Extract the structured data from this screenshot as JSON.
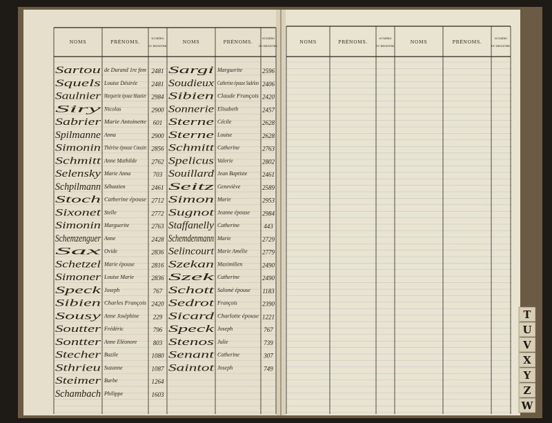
{
  "headers": {
    "nom": "NOMS",
    "prenoms": "PRÉNOMS.",
    "numero_top": "NUMÉRO",
    "numero_bottom": "DU REGISTRE."
  },
  "left_page": {
    "columns": [
      {
        "rows": [
          {
            "nom": "Sartou",
            "prenoms": "de Durand 1re fem",
            "numero": "2481"
          },
          {
            "nom": "Squels",
            "prenoms": "Louise Désirée",
            "numero": "2481"
          },
          {
            "nom": "Saulnier",
            "prenoms": "Marguerite épouse Maunier",
            "numero": "2984"
          },
          {
            "nom": "Siry",
            "prenoms": "Nicolas",
            "numero": "2900"
          },
          {
            "nom": "Sabrier",
            "prenoms": "Marie Antoinette",
            "numero": "601"
          },
          {
            "nom": "Spilmanne",
            "prenoms": "Anna",
            "numero": "2900"
          },
          {
            "nom": "Simonin",
            "prenoms": "Thérèse épouse Cousin",
            "numero": "2856"
          },
          {
            "nom": "Schmitt",
            "prenoms": "Anne Mathilde",
            "numero": "2762"
          },
          {
            "nom": "Selensky",
            "prenoms": "Marie Anna",
            "numero": "703"
          },
          {
            "nom": "Schpilmann",
            "prenoms": "Sébastien",
            "numero": "2461"
          },
          {
            "nom": "Stoch",
            "prenoms": "Catherine épouse",
            "numero": "2712"
          },
          {
            "nom": "Sixonet",
            "prenoms": "Stelle",
            "numero": "2772"
          },
          {
            "nom": "Simonin",
            "prenoms": "Marguerite",
            "numero": "2763"
          },
          {
            "nom": "Schemzenguer",
            "prenoms": "Anne",
            "numero": "2428"
          },
          {
            "nom": "Sax",
            "prenoms": "Ovide",
            "numero": "2836"
          },
          {
            "nom": "Schetzel",
            "prenoms": "Marie épouse",
            "numero": "2816"
          },
          {
            "nom": "Simoner",
            "prenoms": "Louise Marie",
            "numero": "2836"
          },
          {
            "nom": "Speck",
            "prenoms": "Joseph",
            "numero": "767"
          },
          {
            "nom": "Sibien",
            "prenoms": "Charles François",
            "numero": "2420"
          },
          {
            "nom": "Sousy",
            "prenoms": "Anne Joséphine",
            "numero": "229"
          },
          {
            "nom": "Soutter",
            "prenoms": "Frédéric",
            "numero": "796"
          },
          {
            "nom": "Sontter",
            "prenoms": "Anne Eléonore",
            "numero": "803"
          },
          {
            "nom": "Stecher",
            "prenoms": "Bazile",
            "numero": "1080"
          },
          {
            "nom": "Sthrieu",
            "prenoms": "Suzanne",
            "numero": "1087"
          },
          {
            "nom": "Steimer",
            "prenoms": "Barbe",
            "numero": "1264"
          },
          {
            "nom": "Schambach",
            "prenoms": "Philippe",
            "numero": "1603"
          }
        ]
      },
      {
        "rows": [
          {
            "nom": "Sargi",
            "prenoms": "Marguerite",
            "numero": "2596"
          },
          {
            "nom": "Soudieux",
            "prenoms": "Catherine épouse Sudelon",
            "numero": "2406"
          },
          {
            "nom": "Sibien",
            "prenoms": "Claude François",
            "numero": "2420"
          },
          {
            "nom": "Sonnerie",
            "prenoms": "Elisabeth",
            "numero": "2457"
          },
          {
            "nom": "Sterne",
            "prenoms": "Cécile",
            "numero": "2628"
          },
          {
            "nom": "Sterne",
            "prenoms": "Louise",
            "numero": "2628"
          },
          {
            "nom": "Schmitt",
            "prenoms": "Catherine",
            "numero": "2763"
          },
          {
            "nom": "Spelicus",
            "prenoms": "Valerie",
            "numero": "2802"
          },
          {
            "nom": "Souillard",
            "prenoms": "Jean Baptiste",
            "numero": "2461"
          },
          {
            "nom": "Seitz",
            "prenoms": "Geneviève",
            "numero": "2589"
          },
          {
            "nom": "Simon",
            "prenoms": "Marie",
            "numero": "2953"
          },
          {
            "nom": "Sugnot",
            "prenoms": "Jeanne épouse",
            "numero": "2984"
          },
          {
            "nom": "Staffanelly",
            "prenoms": "Catherine",
            "numero": "443"
          },
          {
            "nom": "Schemdenmann",
            "prenoms": "Marie",
            "numero": "2729"
          },
          {
            "nom": "Selincourt",
            "prenoms": "Marie Amélie",
            "numero": "2779"
          },
          {
            "nom": "Szekan",
            "prenoms": "Maximilien",
            "numero": "2490"
          },
          {
            "nom": "Szek",
            "prenoms": "Catherine",
            "numero": "2490"
          },
          {
            "nom": "Schott",
            "prenoms": "Salomé épouse",
            "numero": "1183"
          },
          {
            "nom": "Sedrot",
            "prenoms": "François",
            "numero": "2390"
          },
          {
            "nom": "Sicard",
            "prenoms": "Charlotte épouse",
            "numero": "1221"
          },
          {
            "nom": "Speck",
            "prenoms": "Joseph",
            "numero": "767"
          },
          {
            "nom": "Stenos",
            "prenoms": "Julie",
            "numero": "739"
          },
          {
            "nom": "Senant",
            "prenoms": "Catherine",
            "numero": "307"
          },
          {
            "nom": "Saintot",
            "prenoms": "Joseph",
            "numero": "749"
          }
        ]
      }
    ]
  },
  "tabs": [
    "T",
    "U",
    "V",
    "X",
    "Y",
    "Z",
    "W"
  ]
}
